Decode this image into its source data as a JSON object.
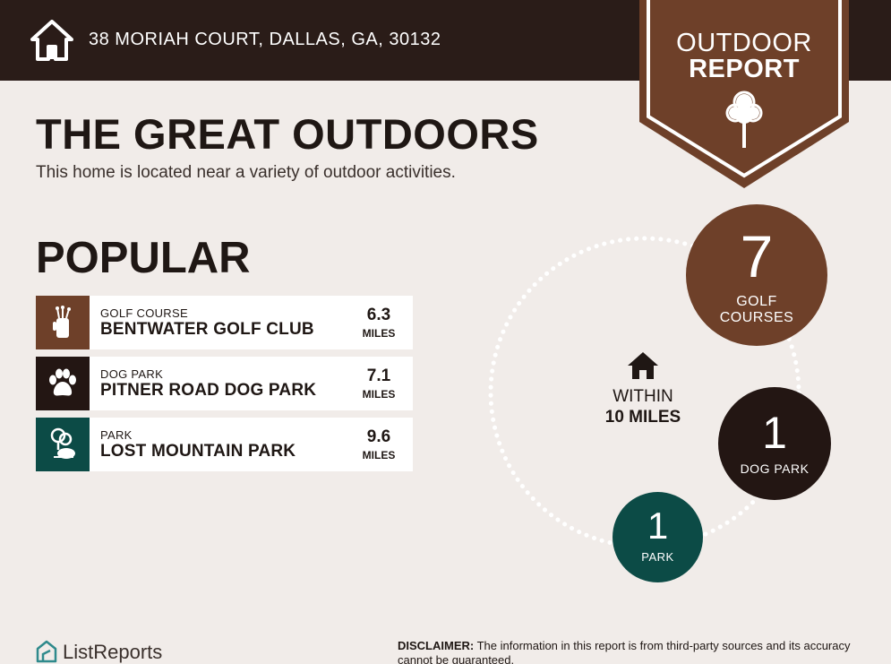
{
  "header": {
    "address": "38 MORIAH COURT, DALLAS, GA, 30132",
    "badge_line1": "OUTDOOR",
    "badge_line2": "REPORT"
  },
  "intro": {
    "title": "THE GREAT OUTDOORS",
    "subtitle": "This home is located near a variety of outdoor activities."
  },
  "popular": {
    "title": "POPULAR",
    "items": [
      {
        "category": "GOLF COURSE",
        "name": "BENTWATER GOLF CLUB",
        "distance": "6.3",
        "unit": "MILES",
        "icon": "golf-bag-icon",
        "color": "#6e4029"
      },
      {
        "category": "DOG PARK",
        "name": "PITNER ROAD DOG PARK",
        "distance": "7.1",
        "unit": "MILES",
        "icon": "paw-icon",
        "color": "#231613"
      },
      {
        "category": "PARK",
        "name": "LOST MOUNTAIN PARK",
        "distance": "9.6",
        "unit": "MILES",
        "icon": "park-icon",
        "color": "#0c4b46"
      }
    ]
  },
  "radius": {
    "label1": "WITHIN",
    "label2": "10 MILES",
    "counts": [
      {
        "count": "7",
        "label_line1": "GOLF",
        "label_line2": "COURSES",
        "color": "#6e4029"
      },
      {
        "count": "1",
        "label_line1": "DOG PARK",
        "color": "#231613"
      },
      {
        "count": "1",
        "label_line1": "PARK",
        "color": "#0c4b46"
      }
    ]
  },
  "footer": {
    "brand": "ListReports",
    "disclaimer_label": "DISCLAIMER:",
    "disclaimer_text": " The information in this report is from third-party sources and its accuracy cannot be guaranteed."
  },
  "colors": {
    "header_bg": "#2a1c18",
    "badge": "#6e4029",
    "page_bg": "#f1ece9",
    "brand_teal": "#2f8a8c"
  }
}
